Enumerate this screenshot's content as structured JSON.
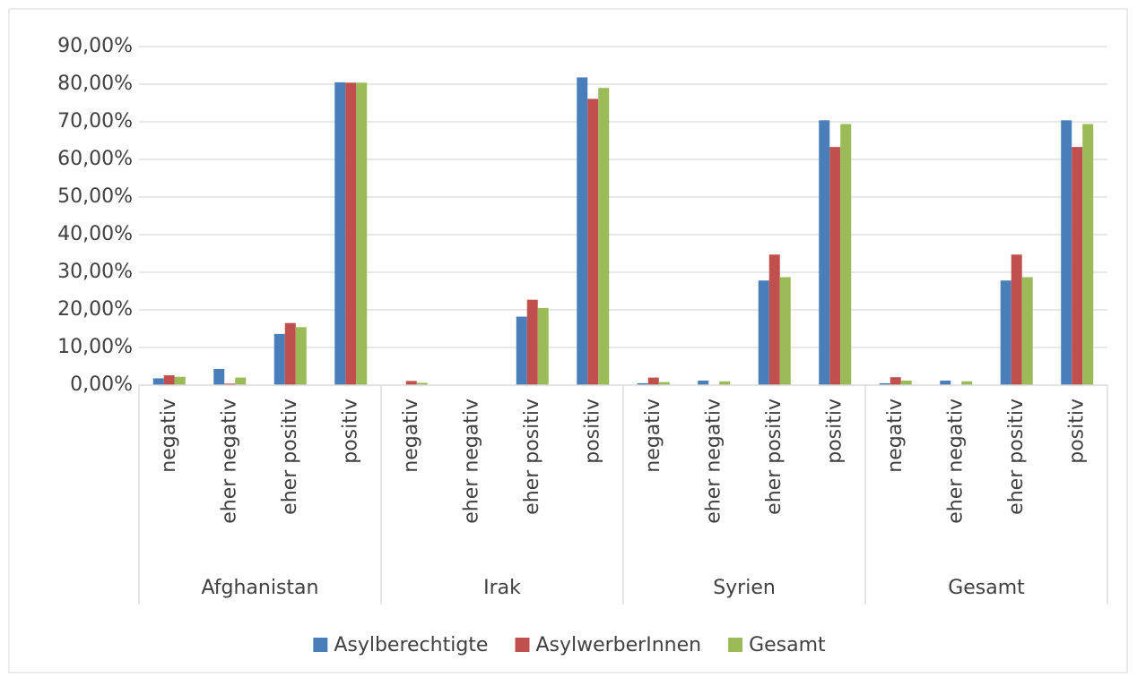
{
  "chart_data": {
    "type": "bar",
    "category_groups": [
      "Afghanistan",
      "Irak",
      "Syrien",
      "Gesamt"
    ],
    "categories": [
      "negativ",
      "eher negativ",
      "eher positiv",
      "positiv",
      "negativ",
      "eher negativ",
      "eher positiv",
      "positiv",
      "negativ",
      "eher negativ",
      "eher positiv",
      "positiv",
      "negativ",
      "eher negativ",
      "eher positiv",
      "positiv"
    ],
    "series": [
      {
        "name": "Asylberechtigte",
        "color": "#4a7ebb",
        "values": [
          1.8,
          4.3,
          13.6,
          80.5,
          0,
          0,
          18.2,
          81.8,
          0.5,
          1.2,
          27.8,
          70.4,
          0.5,
          1.2,
          27.8,
          70.4
        ]
      },
      {
        "name": "AsylwerberInnen",
        "color": "#c0504d",
        "values": [
          2.6,
          0.4,
          16.5,
          80.4,
          1.1,
          0,
          22.7,
          76.1,
          2.0,
          0,
          34.7,
          63.3,
          2.1,
          0,
          34.7,
          63.3
        ]
      },
      {
        "name": "Gesamt",
        "color": "#9bbb59",
        "values": [
          2.2,
          2.0,
          15.4,
          80.4,
          0.6,
          0,
          20.5,
          79.0,
          0.8,
          1.0,
          28.7,
          69.4,
          1.2,
          1.0,
          28.7,
          69.4
        ]
      }
    ],
    "ylim": [
      0,
      90
    ],
    "yticks": [
      {
        "value": 0,
        "label": "0,00%"
      },
      {
        "value": 10,
        "label": "10,00%"
      },
      {
        "value": 20,
        "label": "20,00%"
      },
      {
        "value": 30,
        "label": "30,00%"
      },
      {
        "value": 40,
        "label": "40,00%"
      },
      {
        "value": 50,
        "label": "50,00%"
      },
      {
        "value": 60,
        "label": "60,00%"
      },
      {
        "value": 70,
        "label": "70,00%"
      },
      {
        "value": 80,
        "label": "80,00%"
      },
      {
        "value": 90,
        "label": "90,00%"
      }
    ],
    "grid": true,
    "legend": "bottom"
  }
}
